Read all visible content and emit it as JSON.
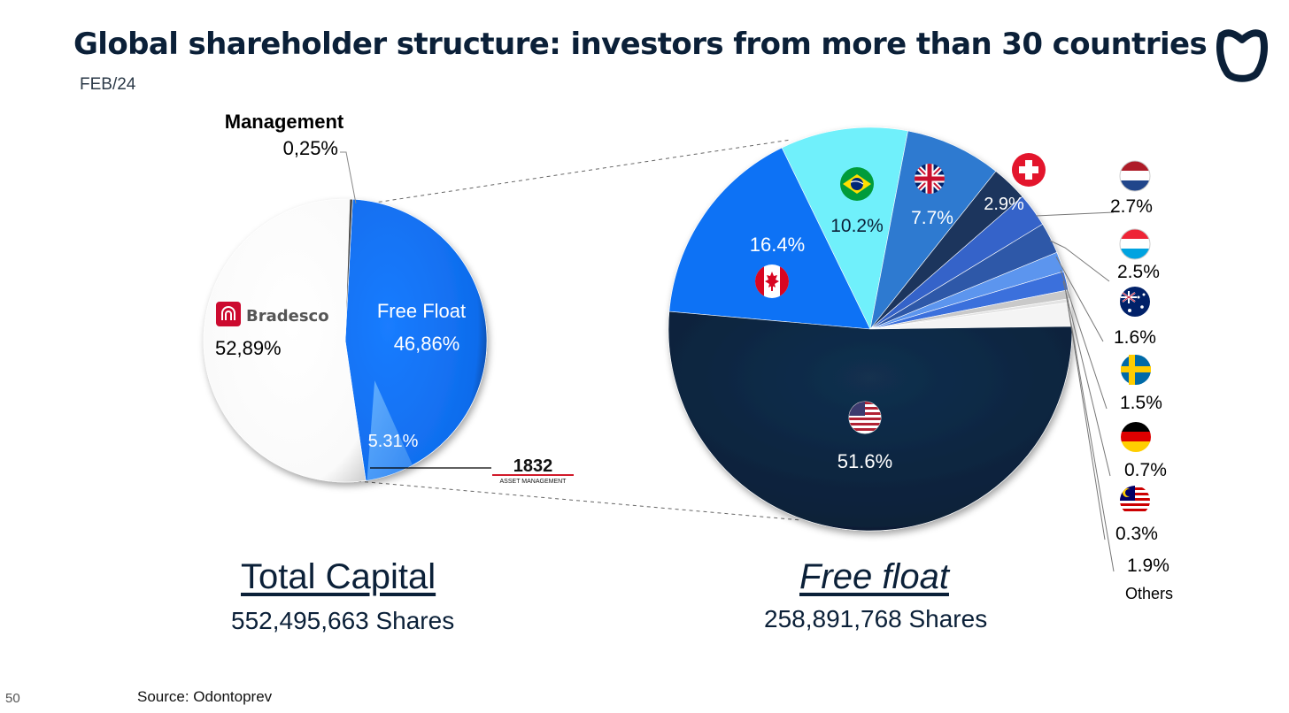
{
  "header": {
    "title": "Global shareholder structure: investors from more than 30 countries",
    "subtitle": "FEB/24"
  },
  "footer": {
    "page_number": "50",
    "source": "Source: Odontoprev"
  },
  "colors": {
    "navy": "#0b2038",
    "blue": "#0f72f5",
    "cyan": "#6ff0fb",
    "white": "#ffffff"
  },
  "chart_data": [
    {
      "type": "pie",
      "caption": "Total Capital",
      "shares": "552,495,663 Shares",
      "slices": [
        {
          "label": "Bradesco",
          "value": 52.89,
          "value_text": "52,89%",
          "icon": "bradesco-logo",
          "color": "#ffffff"
        },
        {
          "label": "Free Float",
          "value": 46.86,
          "value_text": "46,86%",
          "color": "#0f72f5"
        },
        {
          "label": "Management",
          "value": 0.25,
          "value_text": "0,25%",
          "color": "#555555"
        }
      ],
      "sub_slice": {
        "label": "1832",
        "label_sub": "ASSET MANAGEMENT",
        "value": 5.31,
        "value_text": "5.31%",
        "icon": "1832-asset-management-logo",
        "color": "#4d9ff7"
      }
    },
    {
      "type": "pie",
      "caption": "Free float",
      "shares": "258,891,768 Shares",
      "slices": [
        {
          "country": "United States",
          "flag": "us-flag",
          "value": 51.6,
          "value_text": "51.6%",
          "color": "#0b2038"
        },
        {
          "country": "Canada",
          "flag": "canada-flag",
          "value": 16.4,
          "value_text": "16.4%",
          "color": "#0f72f5"
        },
        {
          "country": "Brazil",
          "flag": "brazil-flag",
          "value": 10.2,
          "value_text": "10.2%",
          "color": "#6ff0fb"
        },
        {
          "country": "United Kingdom",
          "flag": "uk-flag",
          "value": 7.7,
          "value_text": "7.7%",
          "color": "#2e7ad0"
        },
        {
          "country": "Switzerland",
          "flag": "switzerland-flag",
          "value": 2.9,
          "value_text": "2.9%",
          "color": "#1c355d"
        },
        {
          "country": "Netherlands",
          "flag": "netherlands-flag",
          "value": 2.7,
          "value_text": "2.7%",
          "color": "#3563c9"
        },
        {
          "country": "Luxembourg",
          "flag": "luxembourg-flag",
          "value": 2.5,
          "value_text": "2.5%",
          "color": "#2f58a8"
        },
        {
          "country": "Australia",
          "flag": "australia-flag",
          "value": 1.6,
          "value_text": "1.6%",
          "color": "#5b95ee"
        },
        {
          "country": "Sweden",
          "flag": "sweden-flag",
          "value": 1.5,
          "value_text": "1.5%",
          "color": "#3b6fdc"
        },
        {
          "country": "Germany",
          "flag": "germany-flag",
          "value": 0.7,
          "value_text": "0.7%",
          "color": "#c9c9c9"
        },
        {
          "country": "Malaysia",
          "flag": "malaysia-flag",
          "value": 0.3,
          "value_text": "0.3%",
          "color": "#e4e4e4"
        },
        {
          "country": "Others",
          "label": "Others",
          "value": 1.9,
          "value_text": "1.9%",
          "color": "#f4f4f4"
        }
      ]
    }
  ]
}
